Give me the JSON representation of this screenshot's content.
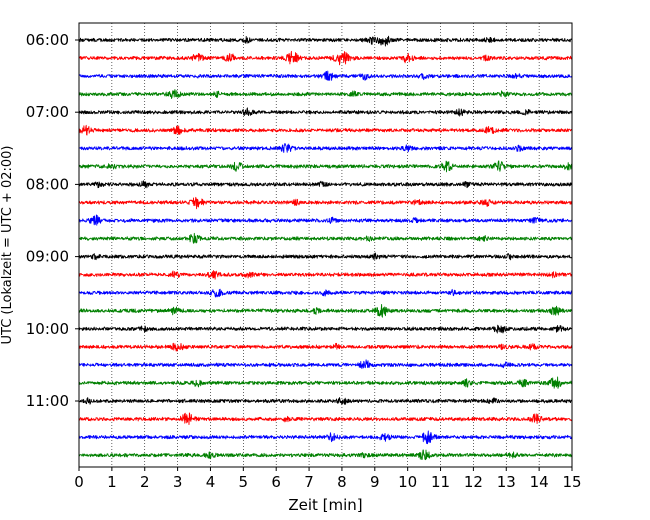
{
  "chart_data": {
    "type": "line",
    "title": "",
    "xlabel": "Zeit  [min]",
    "ylabel": "UTC (Lokalzeit = UTC + 02:00)",
    "xlim": [
      0,
      15
    ],
    "x_ticks": [
      0,
      1,
      2,
      3,
      4,
      5,
      6,
      7,
      8,
      9,
      10,
      11,
      12,
      13,
      14,
      15
    ],
    "x_grid": "dotted vertical lines at each minute",
    "y_axis_inverted": true,
    "y_ticks": [
      "06:00",
      "07:00",
      "08:00",
      "09:00",
      "10:00",
      "11:00"
    ],
    "trace_interval_minutes": 15,
    "color_cycle": [
      "#000000",
      "#ff0000",
      "#0000ff",
      "#008000"
    ],
    "traces": [
      {
        "start": "06:00",
        "color": "#000000",
        "events": [
          [
            5.1,
            0.3
          ],
          [
            8.9,
            0.4
          ],
          [
            9.3,
            0.8
          ],
          [
            12.5,
            0.3
          ]
        ]
      },
      {
        "start": "06:15",
        "color": "#ff0000",
        "events": [
          [
            3.6,
            0.6
          ],
          [
            4.6,
            0.5
          ],
          [
            6.5,
            0.8
          ],
          [
            8.0,
            1.0
          ],
          [
            10.0,
            0.6
          ],
          [
            12.4,
            0.3
          ]
        ]
      },
      {
        "start": "06:30",
        "color": "#0000ff",
        "events": [
          [
            7.6,
            0.6
          ],
          [
            8.7,
            0.4
          ],
          [
            10.5,
            0.3
          ],
          [
            13.3,
            0.3
          ]
        ]
      },
      {
        "start": "06:45",
        "color": "#008000",
        "events": [
          [
            2.9,
            0.6
          ],
          [
            4.2,
            0.3
          ],
          [
            8.4,
            0.3
          ],
          [
            12.9,
            0.3
          ]
        ]
      },
      {
        "start": "07:00",
        "color": "#000000",
        "events": [
          [
            5.1,
            0.5
          ],
          [
            11.6,
            0.4
          ],
          [
            13.6,
            0.3
          ]
        ]
      },
      {
        "start": "07:15",
        "color": "#ff0000",
        "events": [
          [
            0.2,
            0.6
          ],
          [
            3.0,
            0.5
          ],
          [
            12.5,
            0.5
          ]
        ]
      },
      {
        "start": "07:30",
        "color": "#0000ff",
        "events": [
          [
            6.3,
            0.6
          ],
          [
            10.0,
            0.3
          ],
          [
            13.4,
            0.3
          ]
        ]
      },
      {
        "start": "07:45",
        "color": "#008000",
        "events": [
          [
            1.0,
            0.3
          ],
          [
            4.8,
            0.6
          ],
          [
            11.2,
            0.6
          ],
          [
            12.8,
            0.7
          ],
          [
            14.9,
            0.4
          ]
        ]
      },
      {
        "start": "08:00",
        "color": "#000000",
        "events": [
          [
            0.6,
            0.3
          ],
          [
            2.0,
            0.4
          ],
          [
            7.4,
            0.3
          ],
          [
            11.8,
            0.3
          ]
        ]
      },
      {
        "start": "08:15",
        "color": "#ff0000",
        "events": [
          [
            3.6,
            0.7
          ],
          [
            6.6,
            0.3
          ],
          [
            10.3,
            0.3
          ],
          [
            12.4,
            0.4
          ]
        ]
      },
      {
        "start": "08:30",
        "color": "#0000ff",
        "events": [
          [
            0.5,
            0.7
          ],
          [
            7.7,
            0.3
          ],
          [
            10.2,
            0.3
          ],
          [
            13.9,
            0.3
          ]
        ]
      },
      {
        "start": "08:45",
        "color": "#008000",
        "events": [
          [
            3.5,
            0.6
          ],
          [
            8.8,
            0.3
          ],
          [
            12.3,
            0.3
          ]
        ]
      },
      {
        "start": "09:00",
        "color": "#000000",
        "events": [
          [
            0.5,
            0.3
          ],
          [
            9.0,
            0.3
          ],
          [
            13.1,
            0.3
          ]
        ]
      },
      {
        "start": "09:15",
        "color": "#ff0000",
        "events": [
          [
            2.9,
            0.4
          ],
          [
            4.1,
            0.5
          ],
          [
            5.2,
            0.4
          ],
          [
            14.4,
            0.3
          ]
        ]
      },
      {
        "start": "09:30",
        "color": "#0000ff",
        "events": [
          [
            4.2,
            0.6
          ],
          [
            7.5,
            0.3
          ],
          [
            11.4,
            0.3
          ]
        ]
      },
      {
        "start": "09:45",
        "color": "#008000",
        "events": [
          [
            2.9,
            0.5
          ],
          [
            7.2,
            0.3
          ],
          [
            9.2,
            0.8
          ],
          [
            14.5,
            0.6
          ]
        ]
      },
      {
        "start": "10:00",
        "color": "#000000",
        "events": [
          [
            2.0,
            0.3
          ],
          [
            12.8,
            0.6
          ],
          [
            14.6,
            0.4
          ]
        ]
      },
      {
        "start": "10:15",
        "color": "#ff0000",
        "events": [
          [
            3.0,
            0.6
          ],
          [
            7.8,
            0.3
          ],
          [
            12.9,
            0.3
          ],
          [
            13.8,
            0.3
          ]
        ]
      },
      {
        "start": "10:30",
        "color": "#0000ff",
        "events": [
          [
            8.7,
            0.6
          ],
          [
            13.0,
            0.3
          ]
        ]
      },
      {
        "start": "10:45",
        "color": "#008000",
        "events": [
          [
            3.6,
            0.4
          ],
          [
            11.8,
            0.4
          ],
          [
            13.5,
            0.5
          ],
          [
            14.5,
            0.8
          ]
        ]
      },
      {
        "start": "11:00",
        "color": "#000000",
        "events": [
          [
            0.3,
            0.3
          ],
          [
            8.0,
            0.5
          ],
          [
            12.6,
            0.3
          ]
        ]
      },
      {
        "start": "11:15",
        "color": "#ff0000",
        "events": [
          [
            3.3,
            0.8
          ],
          [
            6.3,
            0.3
          ],
          [
            13.9,
            0.6
          ]
        ]
      },
      {
        "start": "11:30",
        "color": "#0000ff",
        "events": [
          [
            7.7,
            0.5
          ],
          [
            9.3,
            0.5
          ],
          [
            10.6,
            0.8
          ]
        ]
      },
      {
        "start": "11:45",
        "color": "#008000",
        "events": [
          [
            4.0,
            0.3
          ],
          [
            8.7,
            0.3
          ],
          [
            10.5,
            0.7
          ],
          [
            13.2,
            0.3
          ]
        ]
      }
    ]
  }
}
